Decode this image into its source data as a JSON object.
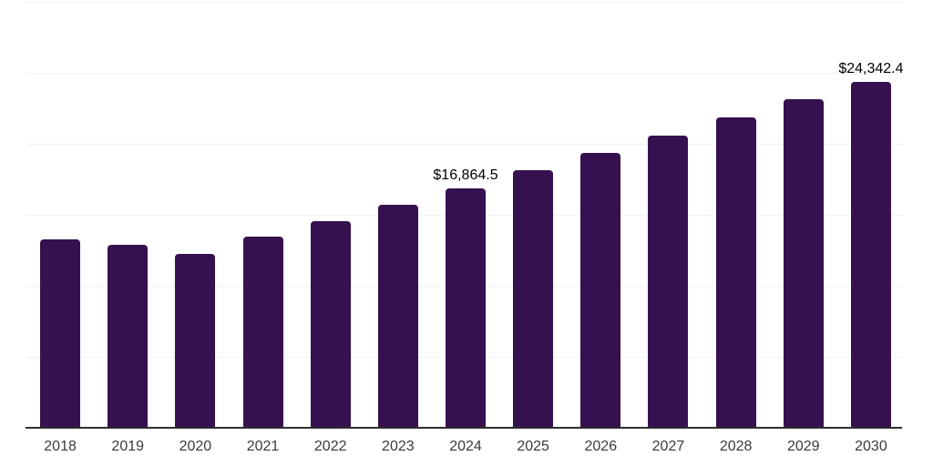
{
  "chart": {
    "background_color": "#ffffff",
    "bar_color": "#351150",
    "grid_color": "#f2f2f2",
    "axis_color": "#2f2f2f",
    "value_label_color": "#000000",
    "tick_label_color": "#3a3a3a"
  },
  "chart_data": {
    "type": "bar",
    "title": "",
    "xlabel": "",
    "ylabel": "",
    "categories": [
      "2018",
      "2019",
      "2020",
      "2021",
      "2022",
      "2023",
      "2024",
      "2025",
      "2026",
      "2027",
      "2028",
      "2029",
      "2030"
    ],
    "values": [
      13270,
      12900,
      12250,
      13450,
      14550,
      15700,
      16864.5,
      18140,
      19360,
      20580,
      21860,
      23140,
      24342.4
    ],
    "value_labels": {
      "2024": "$16,864.5",
      "2030": "$24,342.4"
    },
    "ylim": [
      0,
      30000
    ],
    "grid_step": 5000,
    "grid": true,
    "legend": false,
    "y_tick_labels_visible": false
  }
}
